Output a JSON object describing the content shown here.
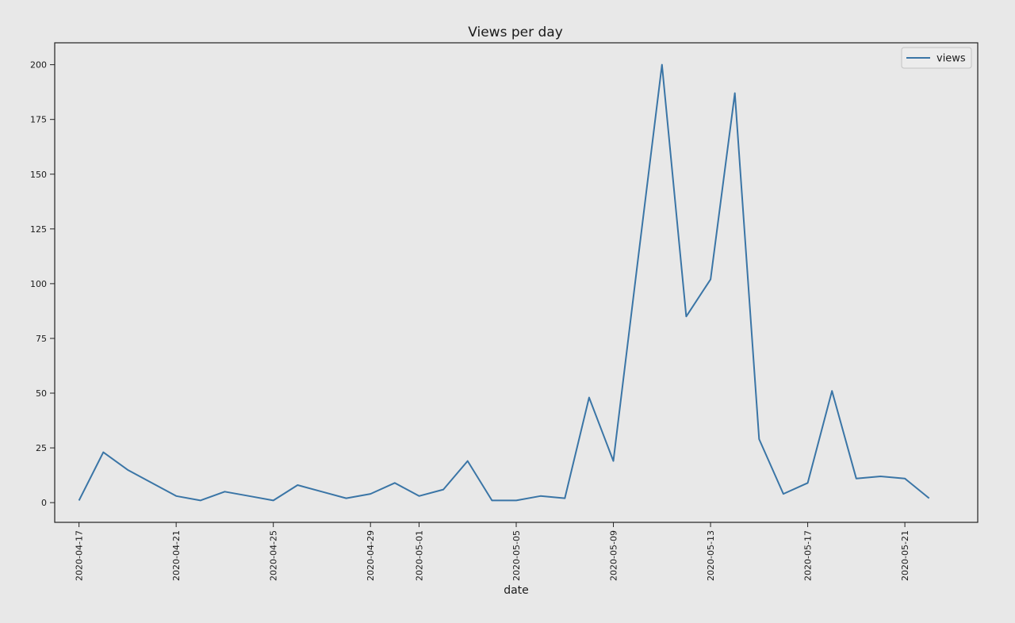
{
  "chart_data": {
    "type": "line",
    "title": "Views per day",
    "xlabel": "date",
    "ylabel": "",
    "ylim": [
      -9,
      210
    ],
    "xlim": [
      "2020-04-16",
      "2020-05-24"
    ],
    "grid": false,
    "legend_position": "top-right",
    "line_color": "#3a75a6",
    "x_ticks": [
      "2020-04-17",
      "2020-04-21",
      "2020-04-25",
      "2020-04-29",
      "2020-05-01",
      "2020-05-05",
      "2020-05-09",
      "2020-05-13",
      "2020-05-17",
      "2020-05-21"
    ],
    "y_ticks": [
      0,
      25,
      50,
      75,
      100,
      125,
      150,
      175,
      200
    ],
    "x": [
      "2020-04-17",
      "2020-04-18",
      "2020-04-19",
      "2020-04-20",
      "2020-04-21",
      "2020-04-22",
      "2020-04-23",
      "2020-04-24",
      "2020-04-25",
      "2020-04-26",
      "2020-04-27",
      "2020-04-28",
      "2020-04-29",
      "2020-04-30",
      "2020-05-01",
      "2020-05-02",
      "2020-05-03",
      "2020-05-04",
      "2020-05-05",
      "2020-05-06",
      "2020-05-07",
      "2020-05-08",
      "2020-05-09",
      "2020-05-10",
      "2020-05-11",
      "2020-05-12",
      "2020-05-13",
      "2020-05-14",
      "2020-05-15",
      "2020-05-16",
      "2020-05-17",
      "2020-05-18",
      "2020-05-19",
      "2020-05-20",
      "2020-05-21",
      "2020-05-22"
    ],
    "series": [
      {
        "name": "views",
        "values": [
          1,
          23,
          15,
          9,
          3,
          1,
          5,
          3,
          1,
          8,
          5,
          2,
          4,
          9,
          3,
          6,
          19,
          1,
          1,
          3,
          2,
          48,
          19,
          110,
          200,
          85,
          102,
          187,
          29,
          4,
          9,
          51,
          11,
          12,
          11,
          2
        ]
      }
    ]
  }
}
